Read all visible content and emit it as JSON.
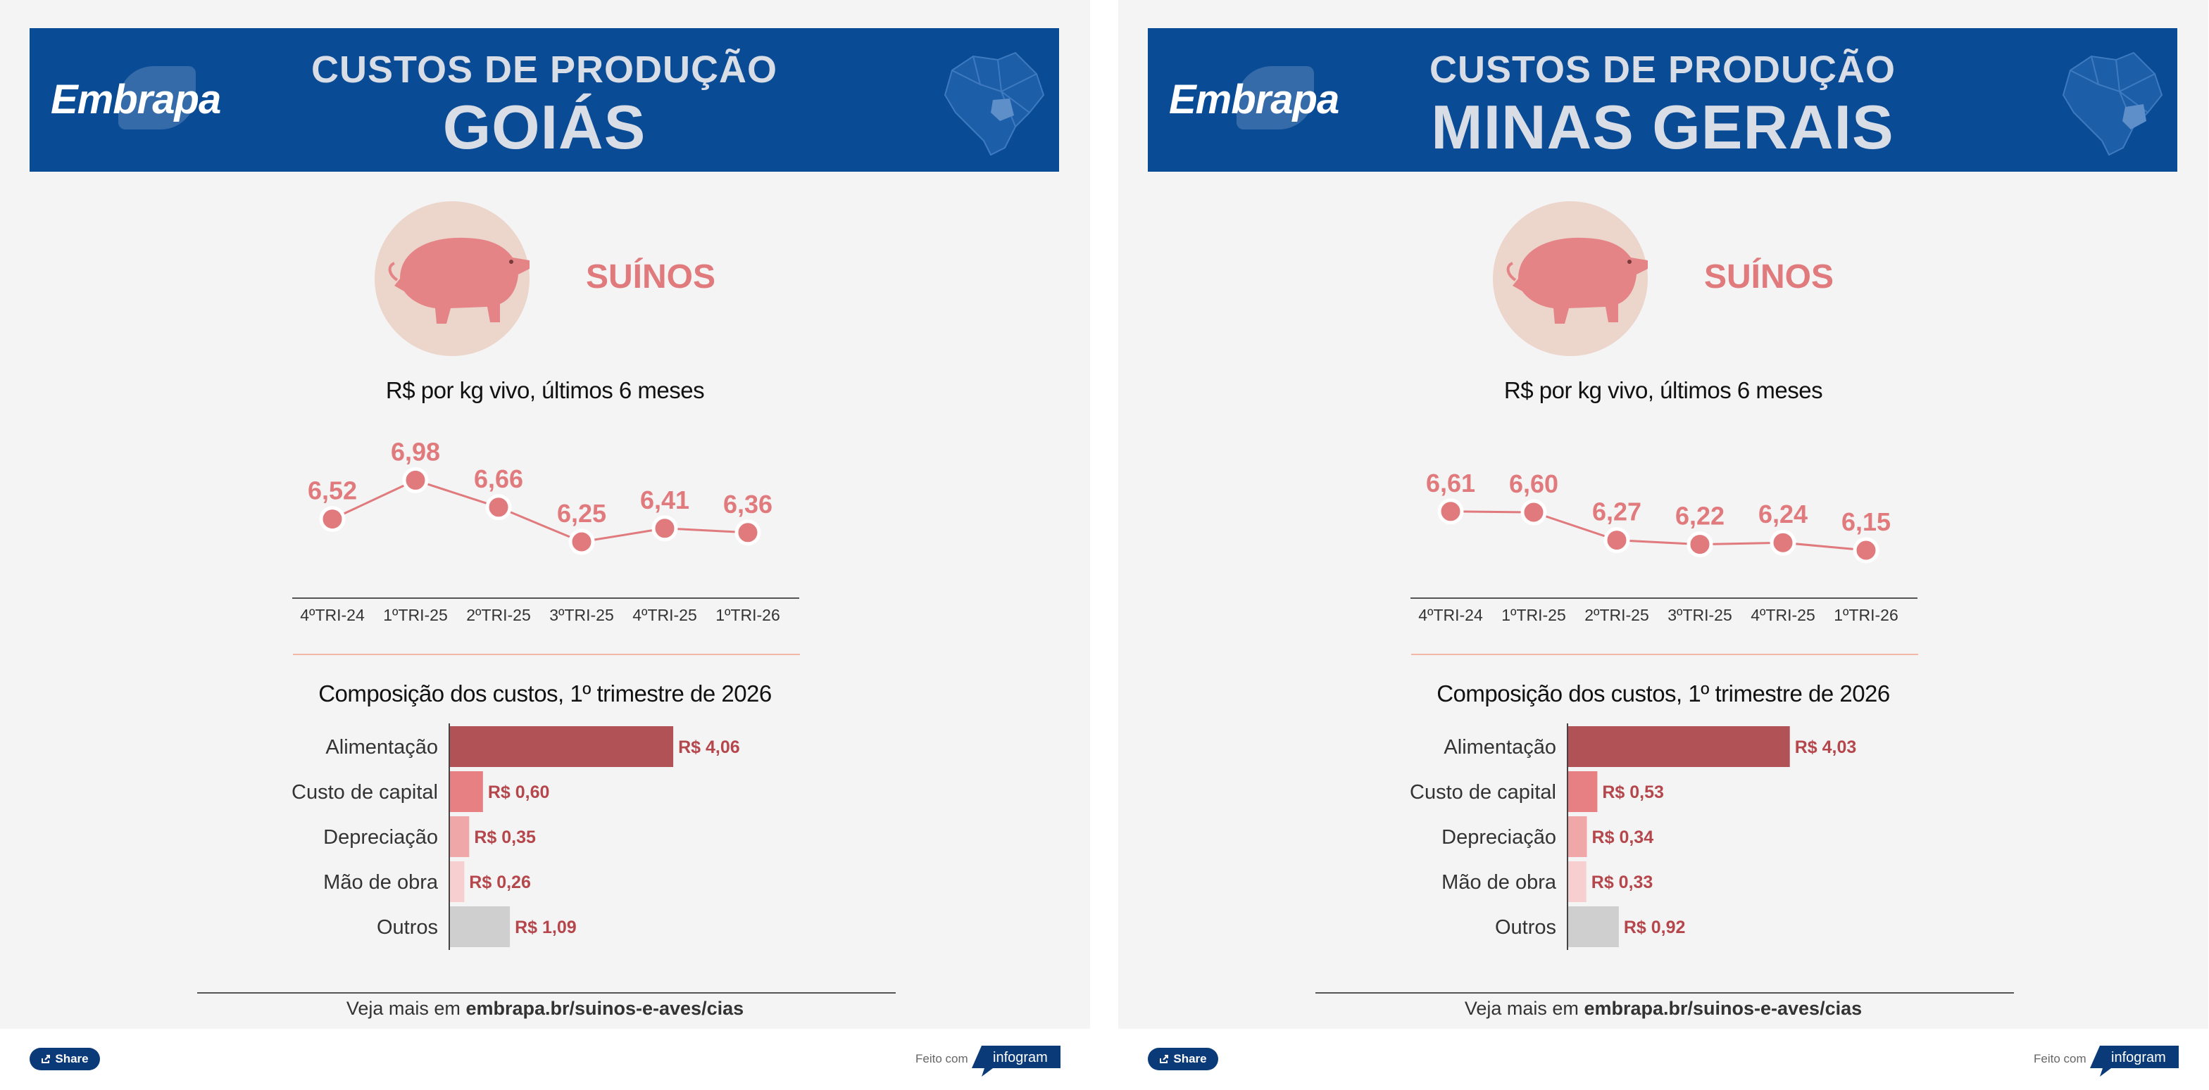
{
  "panels": [
    {
      "header": {
        "logo_text": "Embrapa",
        "title_small": "CUSTOS DE PRODUÇÃO",
        "title_big": "GOIÁS"
      },
      "animal_label": "SUÍNOS",
      "footer": {
        "prefix": "Veja mais em ",
        "link": "embrapa.br/suinos-e-aves/cias",
        "share_label": "Share",
        "made_with": "Feito com",
        "brand": "infogram"
      }
    },
    {
      "header": {
        "logo_text": "Embrapa",
        "title_small": "CUSTOS DE PRODUÇÃO",
        "title_big": "MINAS GERAIS"
      },
      "animal_label": "SUÍNOS",
      "footer": {
        "prefix": "Veja mais em ",
        "link": "embrapa.br/suinos-e-aves/cias",
        "share_label": "Share",
        "made_with": "Feito com",
        "brand": "infogram"
      }
    }
  ],
  "colors": {
    "header_bg": "#0a4b96",
    "accent": "#e07a7d",
    "bar_alimentacao": "#b05256",
    "bar_capital": "#e68082",
    "bar_depreciacao": "#f0a7a8",
    "bar_mao": "#f8cfd0",
    "bar_outros": "#cfcfcf",
    "label_dark_red": "#b5474c"
  },
  "chart_data": [
    {
      "type": "line",
      "title": "R$ por kg vivo, últimos 6 meses",
      "categories": [
        "4ºTRI-24",
        "1ºTRI-25",
        "2ºTRI-25",
        "3ºTRI-25",
        "4ºTRI-25",
        "1ºTRI-26"
      ],
      "series": [
        {
          "values": [
            6.52,
            6.98,
            6.66,
            6.25,
            6.41,
            6.36
          ]
        }
      ],
      "value_labels": [
        "6,52",
        "6,98",
        "6,66",
        "6,25",
        "6,41",
        "6,36"
      ]
    },
    {
      "type": "bar",
      "orientation": "horizontal",
      "title": "Composição dos custos, 1º trimestre de 2026",
      "categories": [
        "Alimentação",
        "Custo de capital",
        "Depreciação",
        "Mão de obra",
        "Outros"
      ],
      "values": [
        4.06,
        0.6,
        0.35,
        0.26,
        1.09
      ],
      "value_labels": [
        "R$ 4,06",
        "R$ 0,60",
        "R$ 0,35",
        "R$ 0,26",
        "R$ 1,09"
      ]
    },
    {
      "type": "line",
      "title": "R$ por kg vivo, últimos 6 meses",
      "categories": [
        "4ºTRI-24",
        "1ºTRI-25",
        "2ºTRI-25",
        "3ºTRI-25",
        "4ºTRI-25",
        "1ºTRI-26"
      ],
      "series": [
        {
          "values": [
            6.61,
            6.6,
            6.27,
            6.22,
            6.24,
            6.15
          ]
        }
      ],
      "value_labels": [
        "6,61",
        "6,60",
        "6,27",
        "6,22",
        "6,24",
        "6,15"
      ]
    },
    {
      "type": "bar",
      "orientation": "horizontal",
      "title": "Composição dos custos, 1º trimestre de 2026",
      "categories": [
        "Alimentação",
        "Custo de capital",
        "Depreciação",
        "Mão de obra",
        "Outros"
      ],
      "values": [
        4.03,
        0.53,
        0.34,
        0.33,
        0.92
      ],
      "value_labels": [
        "R$ 4,03",
        "R$ 0,53",
        "R$ 0,34",
        "R$ 0,33",
        "R$ 0,92"
      ]
    }
  ]
}
